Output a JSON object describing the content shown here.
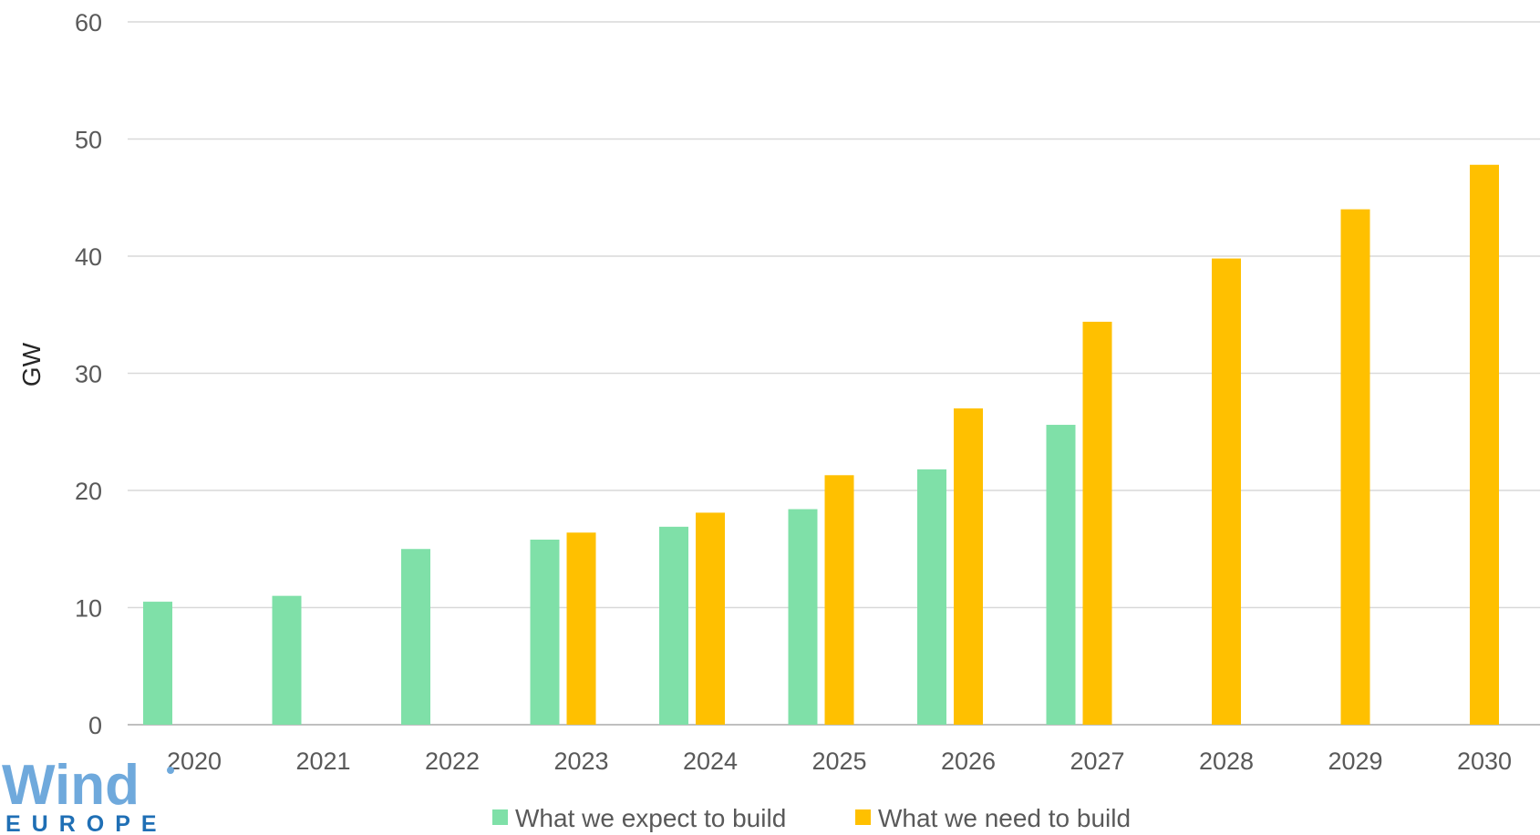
{
  "logo": {
    "word": "Wind",
    "sub": "EUROPE",
    "color": "#6fa9dc",
    "sub_color": "#1f6fb5"
  },
  "chart_data": {
    "type": "bar",
    "ylabel": "GW",
    "xlabel": "",
    "title": "",
    "ylim": [
      0,
      60
    ],
    "yticks": [
      0,
      10,
      20,
      30,
      40,
      50,
      60
    ],
    "grid": true,
    "legend_position": "bottom",
    "categories": [
      "2020",
      "2021",
      "2022",
      "2023",
      "2024",
      "2025",
      "2026",
      "2027",
      "2028",
      "2029",
      "2030"
    ],
    "series": [
      {
        "name": "What we expect to build",
        "color": "#7fe0a8",
        "values": [
          10.5,
          11.0,
          15.0,
          15.8,
          16.9,
          18.4,
          21.8,
          25.6,
          null,
          null,
          null
        ]
      },
      {
        "name": "What we need to build",
        "color": "#ffc000",
        "values": [
          null,
          null,
          null,
          16.4,
          18.1,
          21.3,
          27.0,
          34.4,
          39.8,
          44.0,
          47.8
        ]
      }
    ]
  }
}
